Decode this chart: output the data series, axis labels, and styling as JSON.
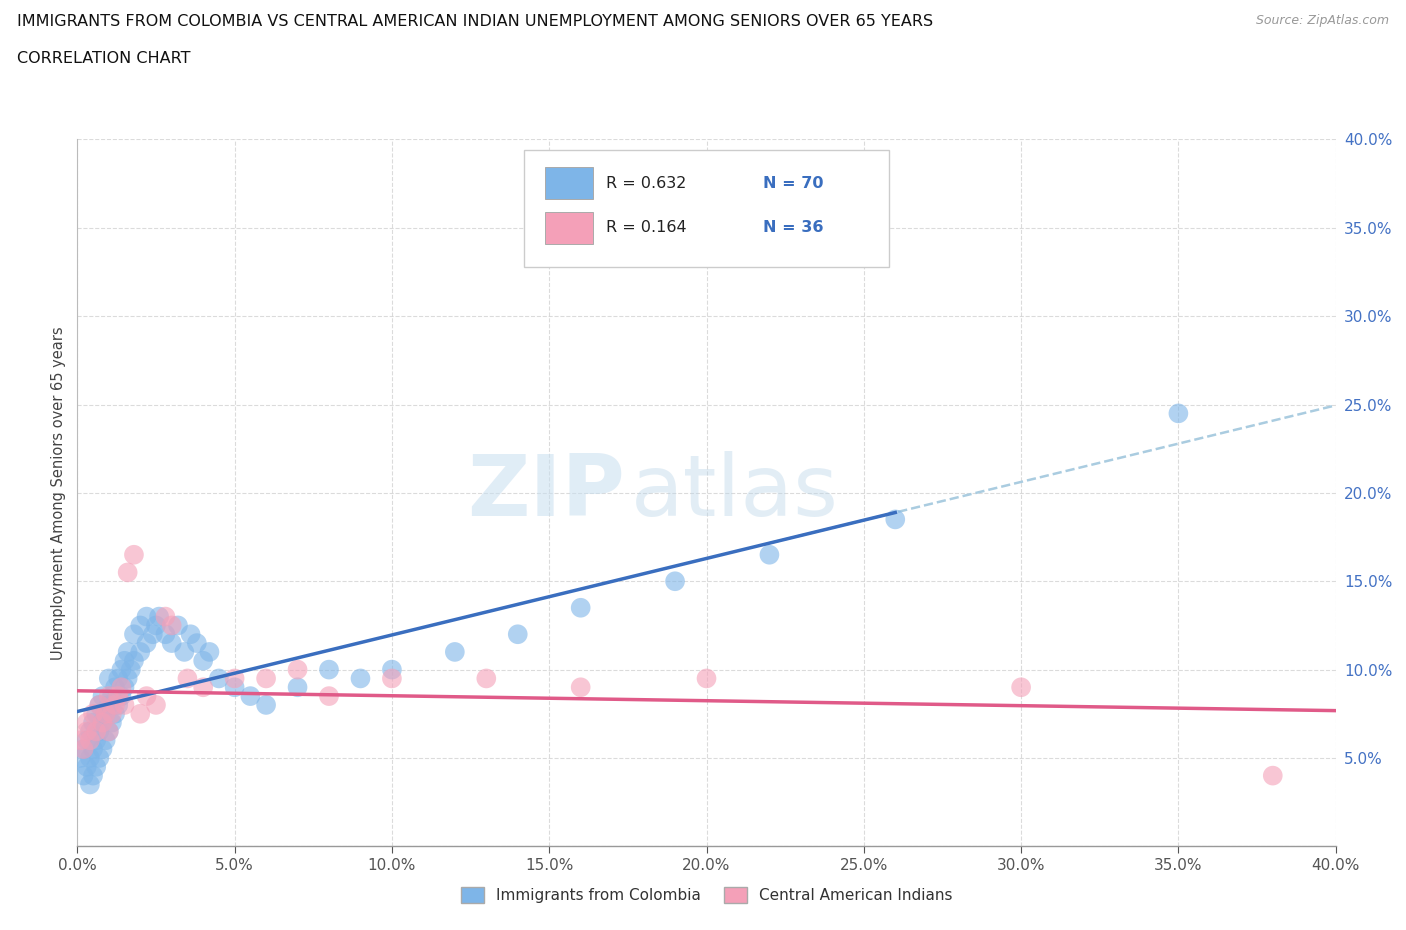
{
  "title_line1": "IMMIGRANTS FROM COLOMBIA VS CENTRAL AMERICAN INDIAN UNEMPLOYMENT AMONG SENIORS OVER 65 YEARS",
  "title_line2": "CORRELATION CHART",
  "source_text": "Source: ZipAtlas.com",
  "ylabel": "Unemployment Among Seniors over 65 years",
  "xlim": [
    0.0,
    0.4
  ],
  "ylim": [
    0.0,
    0.4
  ],
  "xticks": [
    0.0,
    0.05,
    0.1,
    0.15,
    0.2,
    0.25,
    0.3,
    0.35,
    0.4
  ],
  "yticks": [
    0.0,
    0.05,
    0.1,
    0.15,
    0.2,
    0.25,
    0.3,
    0.35,
    0.4
  ],
  "series1_color": "#7EB5E8",
  "series2_color": "#F4A0B8",
  "trend1_color": "#3A6EBF",
  "trend2_color": "#E05A88",
  "trend_dash_color": "#AACCE0",
  "R1": 0.632,
  "N1": 70,
  "R2": 0.164,
  "N2": 36,
  "watermark_zip": "ZIP",
  "watermark_atlas": "atlas",
  "legend_label1": "Immigrants from Colombia",
  "legend_label2": "Central American Indians",
  "series1_x": [
    0.001,
    0.002,
    0.002,
    0.003,
    0.003,
    0.004,
    0.004,
    0.004,
    0.005,
    0.005,
    0.005,
    0.006,
    0.006,
    0.006,
    0.007,
    0.007,
    0.007,
    0.008,
    0.008,
    0.008,
    0.009,
    0.009,
    0.01,
    0.01,
    0.01,
    0.011,
    0.011,
    0.012,
    0.012,
    0.013,
    0.013,
    0.014,
    0.014,
    0.015,
    0.015,
    0.016,
    0.016,
    0.017,
    0.018,
    0.018,
    0.02,
    0.02,
    0.022,
    0.022,
    0.024,
    0.025,
    0.026,
    0.028,
    0.03,
    0.032,
    0.034,
    0.036,
    0.038,
    0.04,
    0.042,
    0.045,
    0.05,
    0.055,
    0.06,
    0.07,
    0.08,
    0.09,
    0.1,
    0.12,
    0.14,
    0.16,
    0.19,
    0.22,
    0.26,
    0.35
  ],
  "series1_y": [
    0.05,
    0.04,
    0.055,
    0.045,
    0.06,
    0.035,
    0.05,
    0.065,
    0.04,
    0.055,
    0.07,
    0.045,
    0.06,
    0.075,
    0.05,
    0.065,
    0.08,
    0.055,
    0.07,
    0.085,
    0.06,
    0.075,
    0.065,
    0.08,
    0.095,
    0.07,
    0.085,
    0.075,
    0.09,
    0.08,
    0.095,
    0.085,
    0.1,
    0.09,
    0.105,
    0.095,
    0.11,
    0.1,
    0.105,
    0.12,
    0.11,
    0.125,
    0.115,
    0.13,
    0.12,
    0.125,
    0.13,
    0.12,
    0.115,
    0.125,
    0.11,
    0.12,
    0.115,
    0.105,
    0.11,
    0.095,
    0.09,
    0.085,
    0.08,
    0.09,
    0.1,
    0.095,
    0.1,
    0.11,
    0.12,
    0.135,
    0.15,
    0.165,
    0.185,
    0.245
  ],
  "series2_x": [
    0.001,
    0.002,
    0.003,
    0.003,
    0.004,
    0.005,
    0.006,
    0.007,
    0.008,
    0.009,
    0.01,
    0.01,
    0.011,
    0.012,
    0.013,
    0.014,
    0.015,
    0.016,
    0.018,
    0.02,
    0.022,
    0.025,
    0.028,
    0.03,
    0.035,
    0.04,
    0.05,
    0.06,
    0.07,
    0.08,
    0.1,
    0.13,
    0.16,
    0.2,
    0.3,
    0.38
  ],
  "series2_y": [
    0.06,
    0.055,
    0.065,
    0.07,
    0.06,
    0.075,
    0.065,
    0.08,
    0.07,
    0.075,
    0.065,
    0.085,
    0.075,
    0.08,
    0.085,
    0.09,
    0.08,
    0.155,
    0.165,
    0.075,
    0.085,
    0.08,
    0.13,
    0.125,
    0.095,
    0.09,
    0.095,
    0.095,
    0.1,
    0.085,
    0.095,
    0.095,
    0.09,
    0.095,
    0.09,
    0.04
  ]
}
